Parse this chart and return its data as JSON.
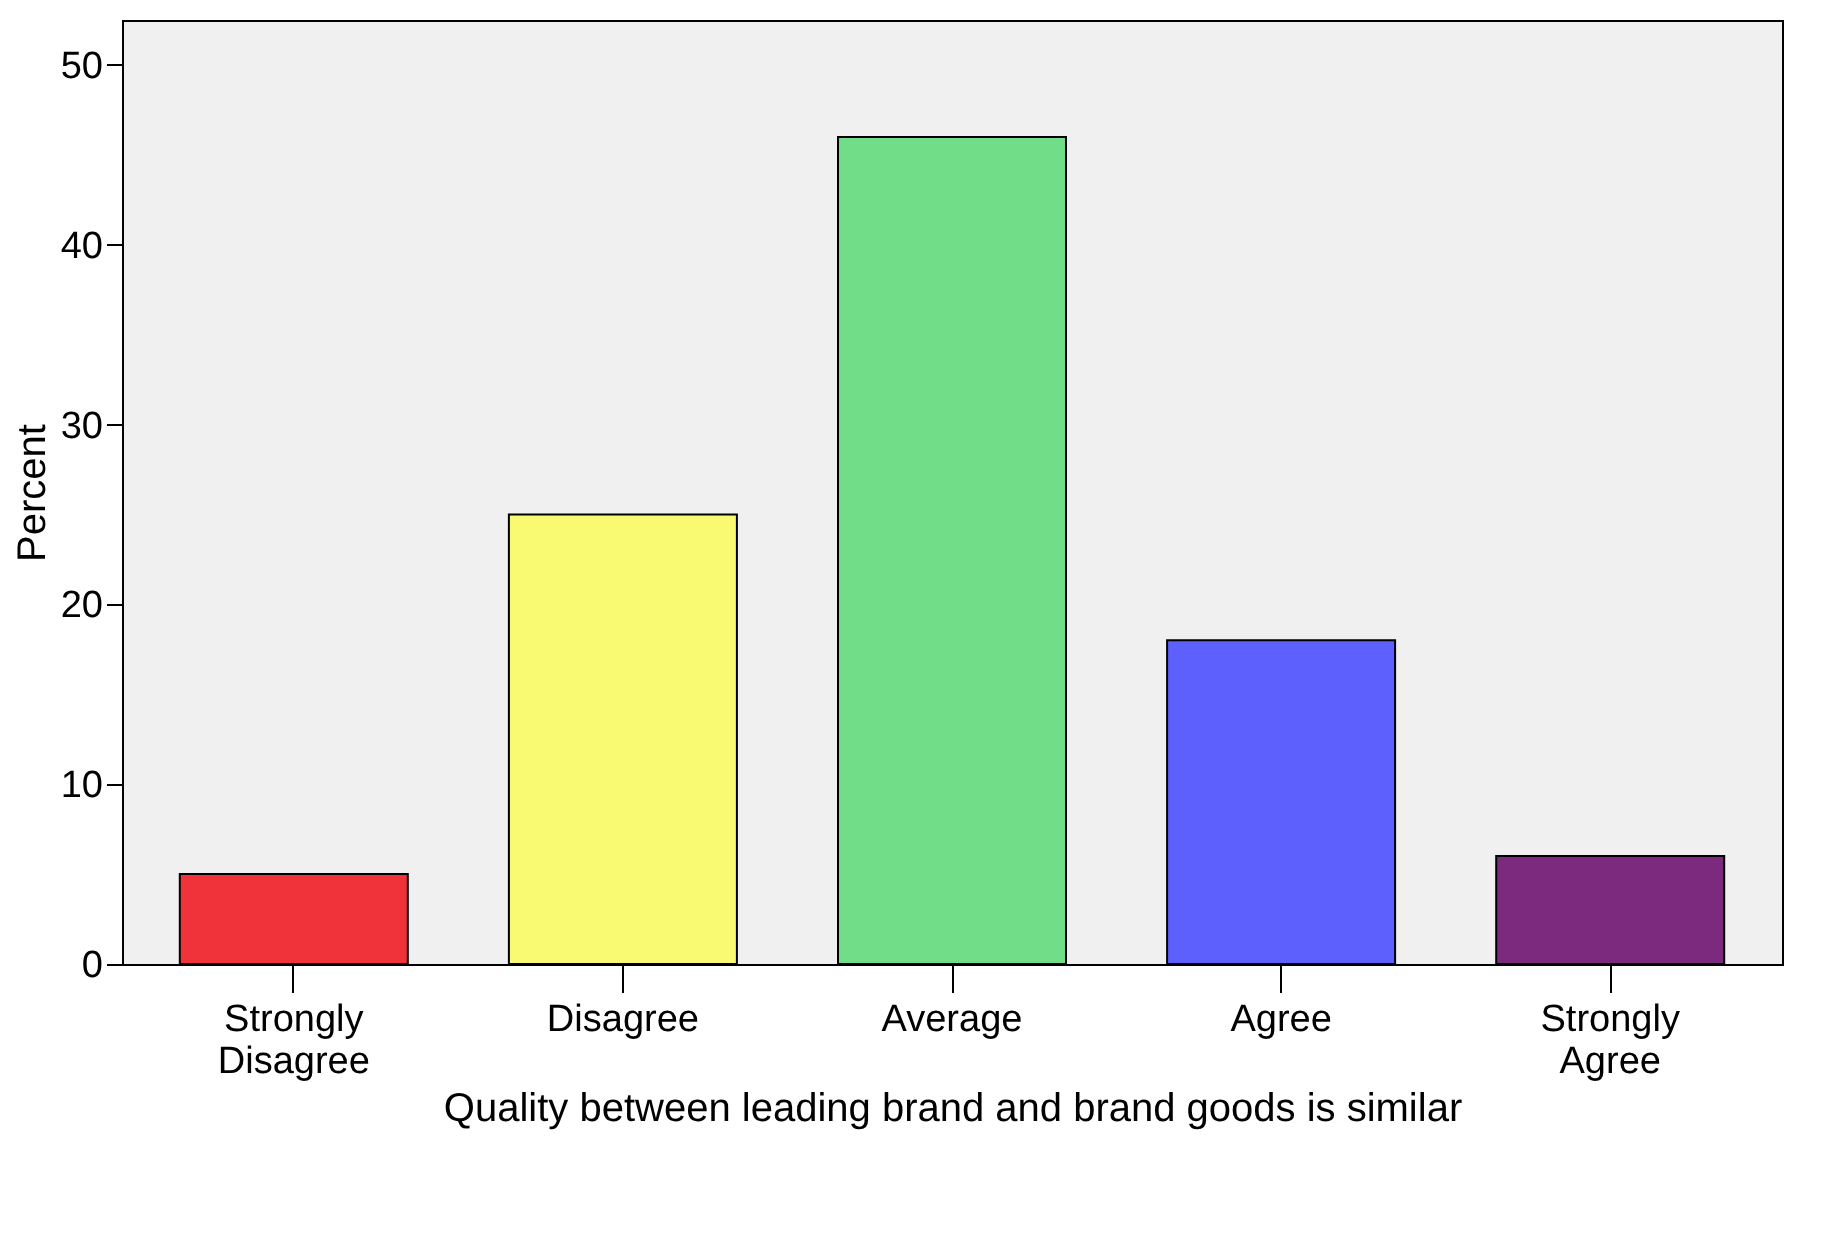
{
  "chart_data": {
    "type": "bar",
    "xlabel": "Quality between leading brand and brand goods is similar",
    "ylabel": "Percent",
    "categories": [
      "Strongly Disagree",
      "Disagree",
      "Average",
      "Agree",
      "Strongly Agree"
    ],
    "values": [
      5,
      25,
      46,
      18,
      6
    ],
    "colors": [
      "#f0333a",
      "#fafa72",
      "#72dd88",
      "#5e60fe",
      "#7b2a7e"
    ],
    "ylim": [
      0,
      52.5
    ],
    "yticks": [
      0,
      10,
      20,
      30,
      40,
      50
    ],
    "grid": false
  }
}
